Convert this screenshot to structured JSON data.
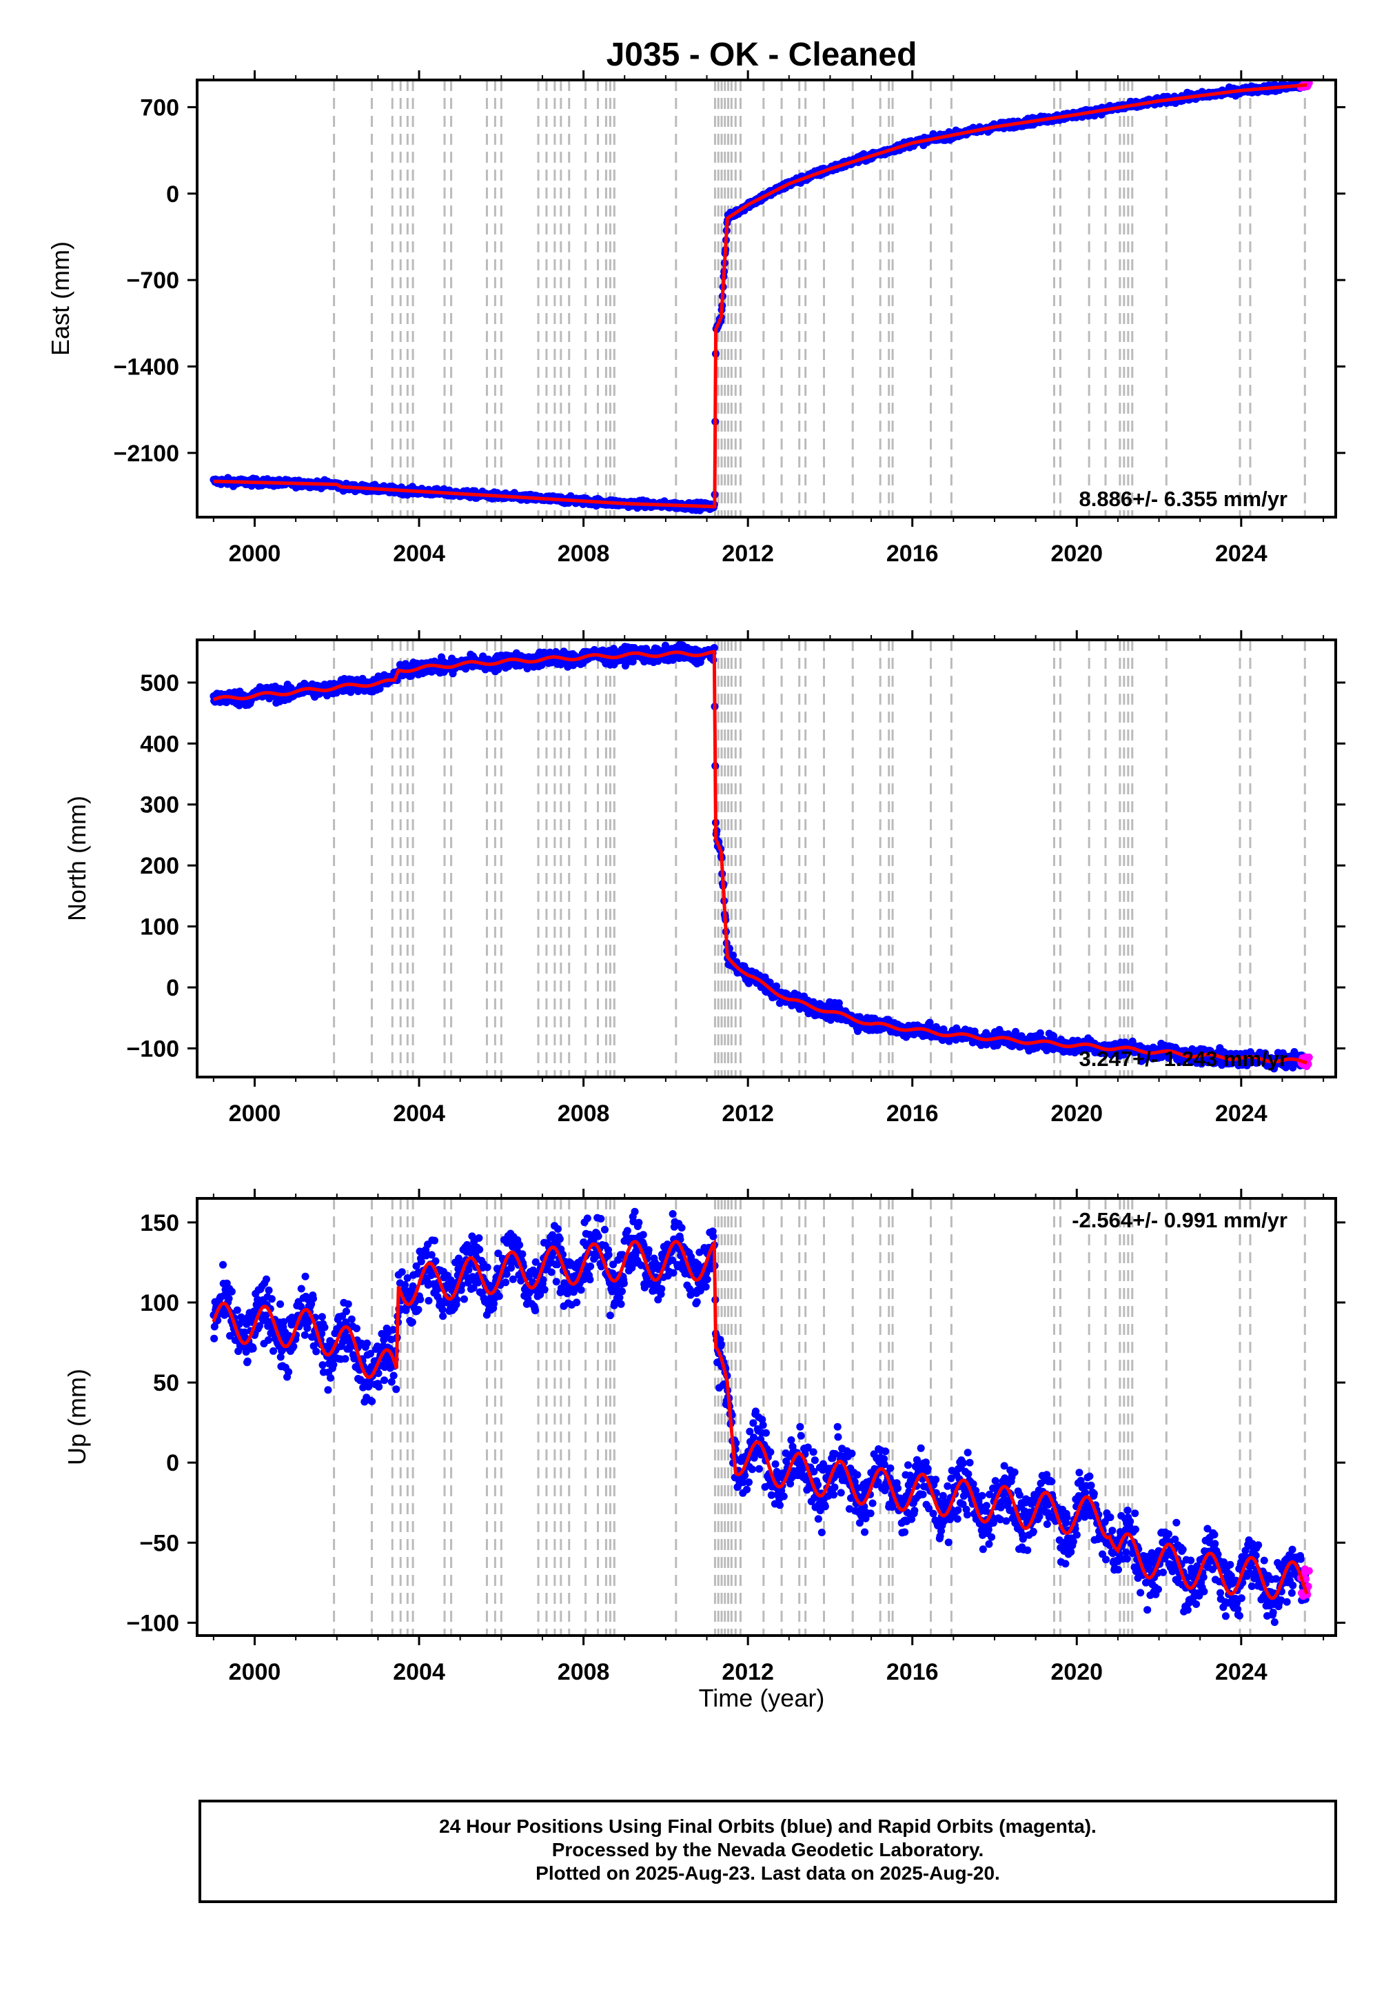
{
  "title": "J035  - OK - Cleaned",
  "xlabel": "Time (year)",
  "colors": {
    "final": "#0000ff",
    "rapid": "#ff00ff",
    "model": "#ff0000",
    "marker": "#bbbbbb"
  },
  "footer": {
    "line1": "24 Hour Positions Using Final Orbits (blue) and Rapid Orbits (magenta).",
    "line2": "Processed by the Nevada Geodetic Laboratory.",
    "line3": "Plotted on 2025-Aug-23. Last data on 2025-Aug-20."
  },
  "chart_data": [
    {
      "type": "scatter",
      "name": "east",
      "ylabel": "East (mm)",
      "rate_text": "8.886+/- 6.355 mm/yr",
      "rate_pos": "bottom-right",
      "xlim": [
        1998.6,
        2026.3
      ],
      "ylim": [
        -2620,
        920
      ],
      "x_ticks": [
        2000,
        2004,
        2008,
        2012,
        2016,
        2020,
        2024
      ],
      "y_ticks": [
        700,
        0,
        -700,
        -1400,
        -2100
      ],
      "trend_points": [
        [
          1999.0,
          -2330
        ],
        [
          2002.0,
          -2355
        ],
        [
          2002.1,
          -2375
        ],
        [
          2006.0,
          -2450
        ],
        [
          2009.0,
          -2510
        ],
        [
          2011.19,
          -2535
        ],
        [
          2011.22,
          -1100
        ],
        [
          2011.35,
          -1000
        ],
        [
          2011.5,
          -200
        ],
        [
          2012.0,
          -90
        ],
        [
          2013.0,
          80
        ],
        [
          2014.0,
          200
        ],
        [
          2016.0,
          410
        ],
        [
          2018.0,
          540
        ],
        [
          2020.0,
          640
        ],
        [
          2022.0,
          750
        ],
        [
          2024.0,
          835
        ],
        [
          2025.6,
          880
        ]
      ],
      "noise": 14,
      "season_amp": 0
    },
    {
      "type": "scatter",
      "name": "north",
      "ylabel": "North (mm)",
      "rate_text": "3.247+/- 1.243 mm/yr",
      "rate_pos": "bottom-right",
      "xlim": [
        1998.6,
        2026.3
      ],
      "ylim": [
        -147,
        570
      ],
      "x_ticks": [
        2000,
        2004,
        2008,
        2012,
        2016,
        2020,
        2024
      ],
      "y_ticks": [
        500,
        400,
        300,
        200,
        100,
        0,
        -100
      ],
      "trend_points": [
        [
          1999.0,
          472
        ],
        [
          2001.0,
          485
        ],
        [
          2003.4,
          502
        ],
        [
          2003.5,
          520
        ],
        [
          2005.0,
          530
        ],
        [
          2007.0,
          538
        ],
        [
          2009.0,
          545
        ],
        [
          2011.18,
          548
        ],
        [
          2011.22,
          240
        ],
        [
          2011.35,
          220
        ],
        [
          2011.5,
          50
        ],
        [
          2012.0,
          20
        ],
        [
          2013.0,
          -20
        ],
        [
          2014.0,
          -40
        ],
        [
          2015.0,
          -60
        ],
        [
          2017.0,
          -78
        ],
        [
          2019.0,
          -90
        ],
        [
          2021.0,
          -100
        ],
        [
          2023.0,
          -112
        ],
        [
          2025.6,
          -122
        ]
      ],
      "noise": 6,
      "season_amp": 3
    },
    {
      "type": "scatter",
      "name": "up",
      "ylabel": "Up (mm)",
      "rate_text": "-2.564+/- 0.991 mm/yr",
      "rate_pos": "top-right",
      "xlim": [
        1998.6,
        2026.3
      ],
      "ylim": [
        -108,
        165
      ],
      "x_ticks": [
        2000,
        2004,
        2008,
        2012,
        2016,
        2020,
        2024
      ],
      "y_ticks": [
        150,
        100,
        50,
        0,
        -50,
        -100
      ],
      "trend_points": [
        [
          1999.0,
          88
        ],
        [
          2001.5,
          83
        ],
        [
          2003.0,
          62
        ],
        [
          2003.45,
          55
        ],
        [
          2003.5,
          110
        ],
        [
          2005.0,
          115
        ],
        [
          2007.0,
          122
        ],
        [
          2009.0,
          126
        ],
        [
          2011.18,
          126
        ],
        [
          2011.22,
          60
        ],
        [
          2011.5,
          50
        ],
        [
          2011.7,
          5
        ],
        [
          2013.0,
          -5
        ],
        [
          2015.0,
          -15
        ],
        [
          2017.0,
          -22
        ],
        [
          2019.0,
          -30
        ],
        [
          2020.8,
          -35
        ],
        [
          2021.0,
          -55
        ],
        [
          2023.0,
          -68
        ],
        [
          2025.6,
          -75
        ]
      ],
      "noise": 9,
      "season_amp": 12
    }
  ],
  "event_markers_year": [
    2001.93,
    2002.85,
    2003.35,
    2003.55,
    2003.72,
    2003.85,
    2004.62,
    2004.78,
    2005.65,
    2005.85,
    2006.0,
    2006.9,
    2007.1,
    2007.3,
    2007.45,
    2007.65,
    2008.05,
    2008.35,
    2008.55,
    2008.65,
    2008.75,
    2010.25,
    2011.2,
    2011.28,
    2011.36,
    2011.44,
    2011.52,
    2011.6,
    2011.7,
    2011.82,
    2012.38,
    2012.82,
    2013.25,
    2013.4,
    2013.85,
    2014.55,
    2015.22,
    2015.43,
    2015.52,
    2016.45,
    2016.95,
    2019.45,
    2019.6,
    2020.3,
    2020.7,
    2021.05,
    2021.15,
    2021.25,
    2021.35,
    2022.18,
    2023.97,
    2024.22,
    2025.55
  ]
}
